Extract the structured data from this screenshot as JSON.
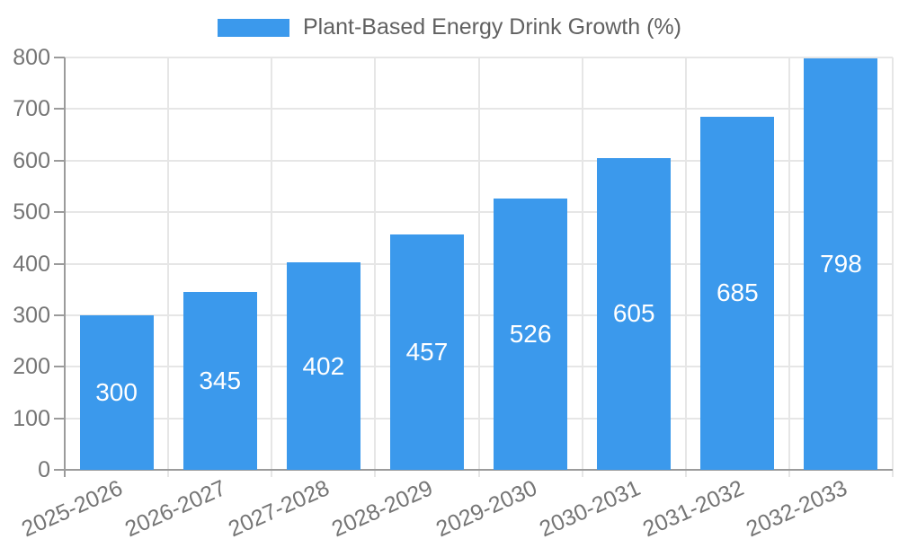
{
  "legend": {
    "label": "Plant-Based Energy Drink Growth (%)"
  },
  "colors": {
    "bar": "#3B99EC",
    "bar_label": "#FFFFFF",
    "axis_label": "#757575",
    "legend_text": "#616161",
    "grid": "#E6E6E6",
    "axis_line": "#9B9B9B",
    "background": "#FFFFFF"
  },
  "chart_data": {
    "type": "bar",
    "title": "Plant-Based Energy Drink Growth (%)",
    "categories": [
      "2025-2026",
      "2026-2027",
      "2027-2028",
      "2028-2029",
      "2029-2030",
      "2030-2031",
      "2031-2032",
      "2032-2033"
    ],
    "values": [
      300,
      345,
      402,
      457,
      526,
      605,
      685,
      798
    ],
    "xlabel": "",
    "ylabel": "",
    "ylim": [
      0,
      800
    ],
    "ytick_step": 100,
    "yticks": [
      0,
      100,
      200,
      300,
      400,
      500,
      600,
      700,
      800
    ],
    "grid": true,
    "legend_position": "top-center",
    "bar_labels_inside": true
  }
}
